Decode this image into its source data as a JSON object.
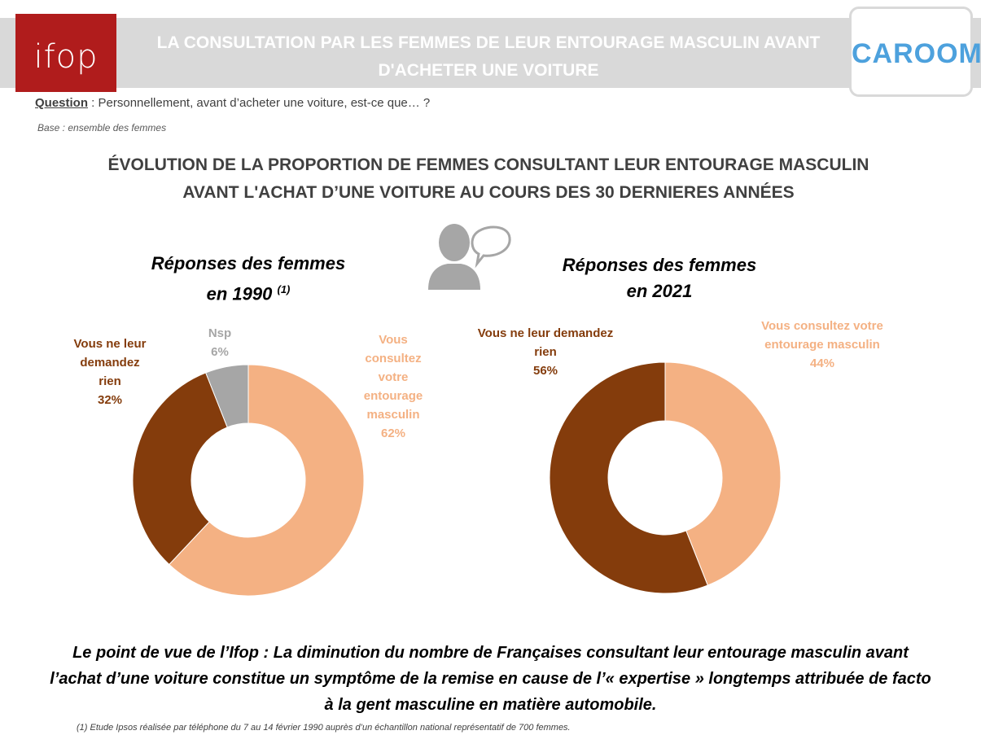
{
  "header": {
    "logo_left": "ifop",
    "title": "LA CONSULTATION PAR LES FEMMES DE LEUR ENTOURAGE MASCULIN AVANT D'ACHETER UNE VOITURE",
    "logo_right": "CAROOM"
  },
  "question": {
    "label": "Question",
    "text": " : Personnellement, avant d’acheter une voiture, est-ce que… ?"
  },
  "base": "Base : ensemble des femmes",
  "main_title": "ÉVOLUTION DE LA PROPORTION DE FEMMES CONSULTANT LEUR ENTOURAGE MASCULIN AVANT L'ACHAT D’UNE VOITURE AU COURS DES 30 DERNIERES ANNÉES",
  "icons": {
    "person": "person-speech-icon"
  },
  "colors": {
    "light": "#f4b183",
    "dark": "#843c0c",
    "gray": "#a6a6a6"
  },
  "chart_data": [
    {
      "type": "pie",
      "title": "Réponses des femmes en 1990",
      "title_line1": "Réponses des femmes",
      "title_line2": "en 1990",
      "title_sup": "(1)",
      "categories": [
        "Vous consultez votre entourage masculin",
        "Vous ne leur demandez rien",
        "Nsp"
      ],
      "values": [
        62,
        32,
        6
      ],
      "labels": {
        "consult": [
          "Vous",
          "consultez",
          "votre",
          "entourage",
          "masculin",
          "62%"
        ],
        "rien": [
          "Vous ne leur",
          "demandez",
          "rien",
          "32%"
        ],
        "nsp": [
          "Nsp",
          "6%"
        ]
      }
    },
    {
      "type": "pie",
      "title": "Réponses des femmes en 2021",
      "title_line1": "Réponses des femmes",
      "title_line2": "en 2021",
      "categories": [
        "Vous consultez votre entourage masculin",
        "Vous ne leur demandez rien"
      ],
      "values": [
        44,
        56
      ],
      "labels": {
        "consult": [
          "Vous consultez votre",
          "entourage masculin",
          "44%"
        ],
        "rien": [
          "Vous ne leur demandez",
          "rien",
          "56%"
        ]
      }
    }
  ],
  "pov": {
    "line1": "Le point de vue de l’Ifop : La diminution du nombre de Françaises consultant leur entourage masculin avant",
    "line2": "l’achat d’une voiture constitue un symptôme de la remise en cause de l’« expertise » longtemps attribuée de facto",
    "line3": "à la gent masculine en matière automobile."
  },
  "footnote": "(1) Etude Ipsos réalisée par téléphone du 7 au 14 février 1990 auprès d’un échantillon national représentatif de 700 femmes."
}
